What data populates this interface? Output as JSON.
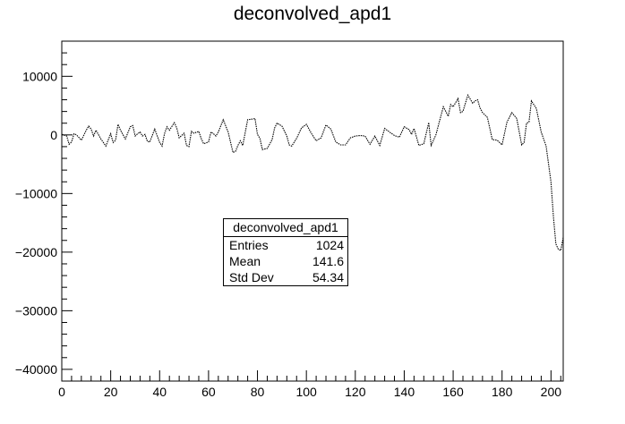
{
  "chart_data": {
    "type": "line",
    "title": "deconvolved_apd1",
    "xlabel": "",
    "ylabel": "",
    "xlim": [
      0,
      205
    ],
    "ylim": [
      -42000,
      16000
    ],
    "xticks": [
      0,
      20,
      40,
      60,
      80,
      100,
      120,
      140,
      160,
      180,
      200
    ],
    "yticks": [
      -40000,
      -30000,
      -20000,
      -10000,
      0,
      10000
    ],
    "x": [
      0,
      2,
      3,
      4,
      5,
      6,
      8,
      10,
      11,
      12,
      13,
      14,
      16,
      18,
      20,
      21,
      22,
      23,
      24,
      26,
      28,
      29,
      30,
      31,
      32,
      33,
      34,
      35,
      36,
      38,
      40,
      41,
      42,
      43,
      44,
      46,
      47,
      48,
      50,
      51,
      52,
      53,
      54,
      56,
      57,
      58,
      60,
      61,
      62,
      63,
      64,
      66,
      68,
      70,
      71,
      72,
      73,
      74,
      76,
      78,
      79,
      80,
      81,
      82,
      84,
      86,
      87,
      88,
      90,
      92,
      93,
      94,
      96,
      98,
      100,
      102,
      104,
      106,
      108,
      110,
      112,
      114,
      116,
      118,
      120,
      122,
      124,
      126,
      128,
      130,
      132,
      134,
      136,
      138,
      140,
      142,
      143,
      144,
      146,
      148,
      150,
      151,
      152,
      153,
      154,
      156,
      158,
      159,
      160,
      162,
      163,
      164,
      166,
      168,
      169,
      170,
      171,
      172,
      174,
      176,
      178,
      180,
      182,
      183,
      184,
      186,
      188,
      189,
      190,
      191,
      192,
      194,
      196,
      198,
      200,
      201,
      202,
      203,
      204,
      205
    ],
    "y": [
      100,
      -200,
      -1600,
      -1200,
      200,
      0,
      -900,
      800,
      1500,
      1000,
      -200,
      800,
      -700,
      -1900,
      200,
      -1300,
      -900,
      1800,
      800,
      -700,
      1400,
      1600,
      -200,
      200,
      500,
      -200,
      100,
      -1100,
      -1200,
      1000,
      -1300,
      -1900,
      200,
      1400,
      800,
      2100,
      1200,
      -500,
      300,
      -1800,
      -2000,
      600,
      300,
      600,
      -600,
      -1500,
      -1200,
      500,
      200,
      -200,
      500,
      2600,
      500,
      -3000,
      -2800,
      -1800,
      -1000,
      -1800,
      2600,
      2700,
      2800,
      100,
      -600,
      -2500,
      -2300,
      -800,
      1200,
      2000,
      1500,
      -200,
      -1700,
      -1900,
      -600,
      1200,
      1800,
      300,
      -1000,
      -500,
      1700,
      1000,
      -1200,
      -1700,
      -1700,
      -500,
      -200,
      -100,
      -200,
      -1600,
      -200,
      -1800,
      1100,
      500,
      -100,
      -400,
      1400,
      900,
      100,
      1100,
      -1800,
      -1500,
      2100,
      -1800,
      -900,
      100,
      1700,
      4800,
      3200,
      5200,
      4800,
      6200,
      3800,
      4000,
      6800,
      5400,
      5800,
      6000,
      4600,
      3800,
      3000,
      -800,
      -900,
      -1700,
      2200,
      3000,
      3800,
      2800,
      -1700,
      -1300,
      2000,
      2200,
      5800,
      4500,
      500,
      -1900,
      -8000,
      -14000,
      -18600,
      -19500,
      -19700,
      -17500
    ]
  },
  "stats_box": {
    "title": "deconvolved_apd1",
    "rows": [
      {
        "label": "Entries",
        "value": "1024"
      },
      {
        "label": "Mean",
        "value": "141.6"
      },
      {
        "label": "Std Dev",
        "value": "54.34"
      }
    ]
  }
}
